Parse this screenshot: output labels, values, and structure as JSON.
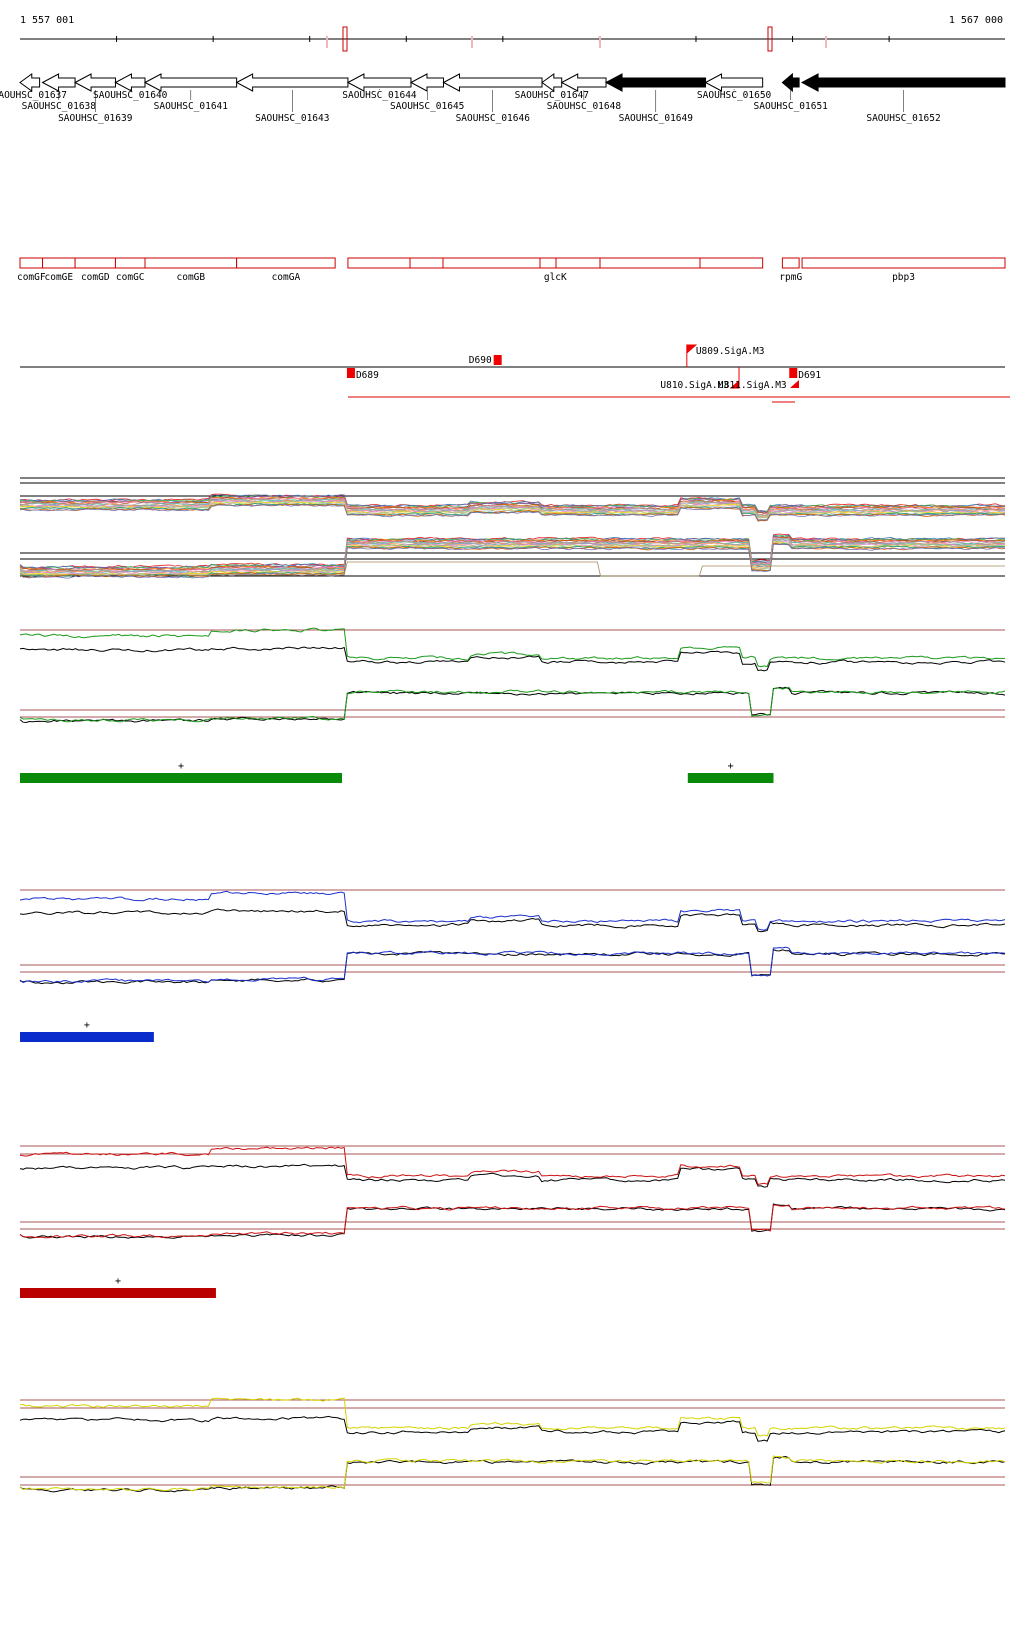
{
  "scale": {
    "start_label": "1 557 001",
    "end_label": "1 567 000",
    "coord_start": 1557001,
    "coord_end": 1567000,
    "axis_color": "#000000",
    "highlight_color": "#cc0000"
  },
  "locus_tags": [
    {
      "name": "SAOUHSC_01637",
      "start": 1557001,
      "end": 1557200,
      "strand": "-",
      "label_row": 0,
      "filled": false
    },
    {
      "name": "SAOUHSC_01638",
      "start": 1557230,
      "end": 1557560,
      "strand": "-",
      "label_row": 1,
      "filled": false
    },
    {
      "name": "SAOUHSC_01639",
      "start": 1557560,
      "end": 1557970,
      "strand": "-",
      "label_row": 2,
      "filled": false
    },
    {
      "name": "SAOUHSC_01640",
      "start": 1557970,
      "end": 1558270,
      "strand": "-",
      "label_row": 0,
      "filled": false
    },
    {
      "name": "SAOUHSC_01641",
      "start": 1558270,
      "end": 1559200,
      "strand": "-",
      "label_row": 1,
      "filled": false
    },
    {
      "name": "SAOUHSC_01643",
      "start": 1559200,
      "end": 1560330,
      "strand": "-",
      "label_row": 2,
      "filled": false
    },
    {
      "name": "SAOUHSC_01644",
      "start": 1560330,
      "end": 1560970,
      "strand": "-",
      "label_row": 0,
      "filled": false
    },
    {
      "name": "SAOUHSC_01645",
      "start": 1560970,
      "end": 1561300,
      "strand": "-",
      "label_row": 1,
      "filled": false
    },
    {
      "name": "SAOUHSC_01646",
      "start": 1561300,
      "end": 1562300,
      "strand": "-",
      "label_row": 2,
      "filled": false
    },
    {
      "name": "SAOUHSC_01647",
      "start": 1562300,
      "end": 1562500,
      "strand": "-",
      "label_row": 0,
      "filled": false
    },
    {
      "name": "SAOUHSC_01648",
      "start": 1562500,
      "end": 1562950,
      "strand": "-",
      "label_row": 1,
      "filled": false
    },
    {
      "name": "SAOUHSC_01649",
      "start": 1562950,
      "end": 1563960,
      "strand": "-",
      "label_row": 2,
      "filled": true
    },
    {
      "name": "SAOUHSC_01650",
      "start": 1563960,
      "end": 1564540,
      "strand": "-",
      "label_row": 0,
      "filled": false
    },
    {
      "name": "SAOUHSC_01651",
      "start": 1564740,
      "end": 1564910,
      "strand": "-",
      "label_row": 1,
      "filled": true
    },
    {
      "name": "SAOUHSC_01652",
      "start": 1564940,
      "end": 1567000,
      "strand": "-",
      "label_row": 2,
      "filled": true
    }
  ],
  "gene_names": [
    {
      "name": "comGF",
      "start": 1557001,
      "end": 1557230
    },
    {
      "name": "comGE",
      "start": 1557230,
      "end": 1557560
    },
    {
      "name": "comGD",
      "start": 1557560,
      "end": 1557970
    },
    {
      "name": "comGC",
      "start": 1557970,
      "end": 1558270
    },
    {
      "name": "comGB",
      "start": 1558270,
      "end": 1559200
    },
    {
      "name": "comGA",
      "start": 1559200,
      "end": 1560200
    },
    {
      "name": "glcK",
      "start": 1560330,
      "end": 1564540
    },
    {
      "name": "rpmG",
      "start": 1564740,
      "end": 1564910
    },
    {
      "name": "pbp3",
      "start": 1564940,
      "end": 1567000
    }
  ],
  "features": [
    {
      "name": "D689",
      "pos": 1560330,
      "above": false
    },
    {
      "name": "D690",
      "pos": 1561850,
      "above": true
    },
    {
      "name": "U809.SigA.M3",
      "pos": 1563770,
      "above": true
    },
    {
      "name": "U810.SigA.M3",
      "pos": 1564300,
      "above": false
    },
    {
      "name": "D691",
      "pos": 1564820,
      "above": false
    }
  ],
  "feature_extra_label": "U811.SigA.M3",
  "tracks": [
    {
      "name": "all-conditions",
      "color": "#888888",
      "multicolor": true
    },
    {
      "name": "green-condition",
      "color": "#1a8a1a"
    },
    {
      "name": "blue-condition",
      "color": "#1a2fcc"
    },
    {
      "name": "red-condition",
      "color": "#bb1111"
    },
    {
      "name": "yellow-condition",
      "color": "#d4d400"
    }
  ],
  "segments": [
    {
      "track": "green-condition",
      "start": 1557001,
      "end": 1560270,
      "color": "#0a8a0a",
      "label": "+"
    },
    {
      "track": "green-condition",
      "start": 1563780,
      "end": 1564650,
      "color": "#0a8a0a",
      "label": "+"
    },
    {
      "track": "blue-condition",
      "start": 1557001,
      "end": 1558360,
      "color": "#0a2ccc",
      "label": "+"
    },
    {
      "track": "red-condition",
      "start": 1557001,
      "end": 1558990,
      "color": "#bb0000",
      "label": "+"
    }
  ]
}
